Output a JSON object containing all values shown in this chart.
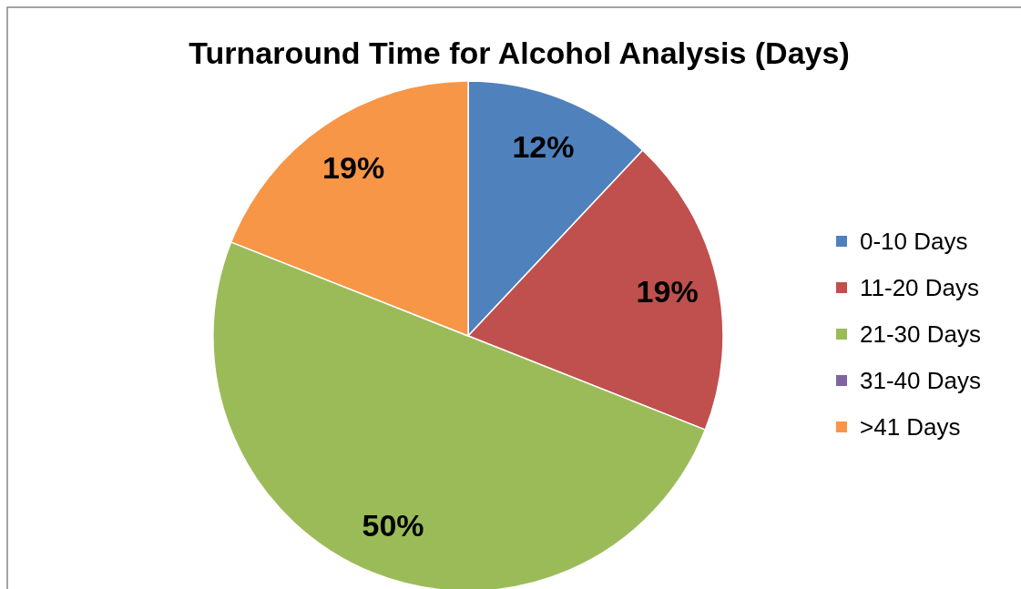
{
  "chart_data": {
    "type": "pie",
    "title": "Turnaround Time for Alcohol Analysis (Days)",
    "categories": [
      "0-10 Days",
      "11-20 Days",
      "21-30 Days",
      "31-40 Days",
      ">41 Days"
    ],
    "values": [
      12,
      19,
      50,
      0,
      19
    ],
    "colors": [
      "#4f81bd",
      "#c0504d",
      "#9bbb59",
      "#8064a2",
      "#f79646"
    ],
    "value_labels": [
      "12%",
      "19%",
      "50%",
      null,
      "19%"
    ],
    "legend": "right"
  }
}
